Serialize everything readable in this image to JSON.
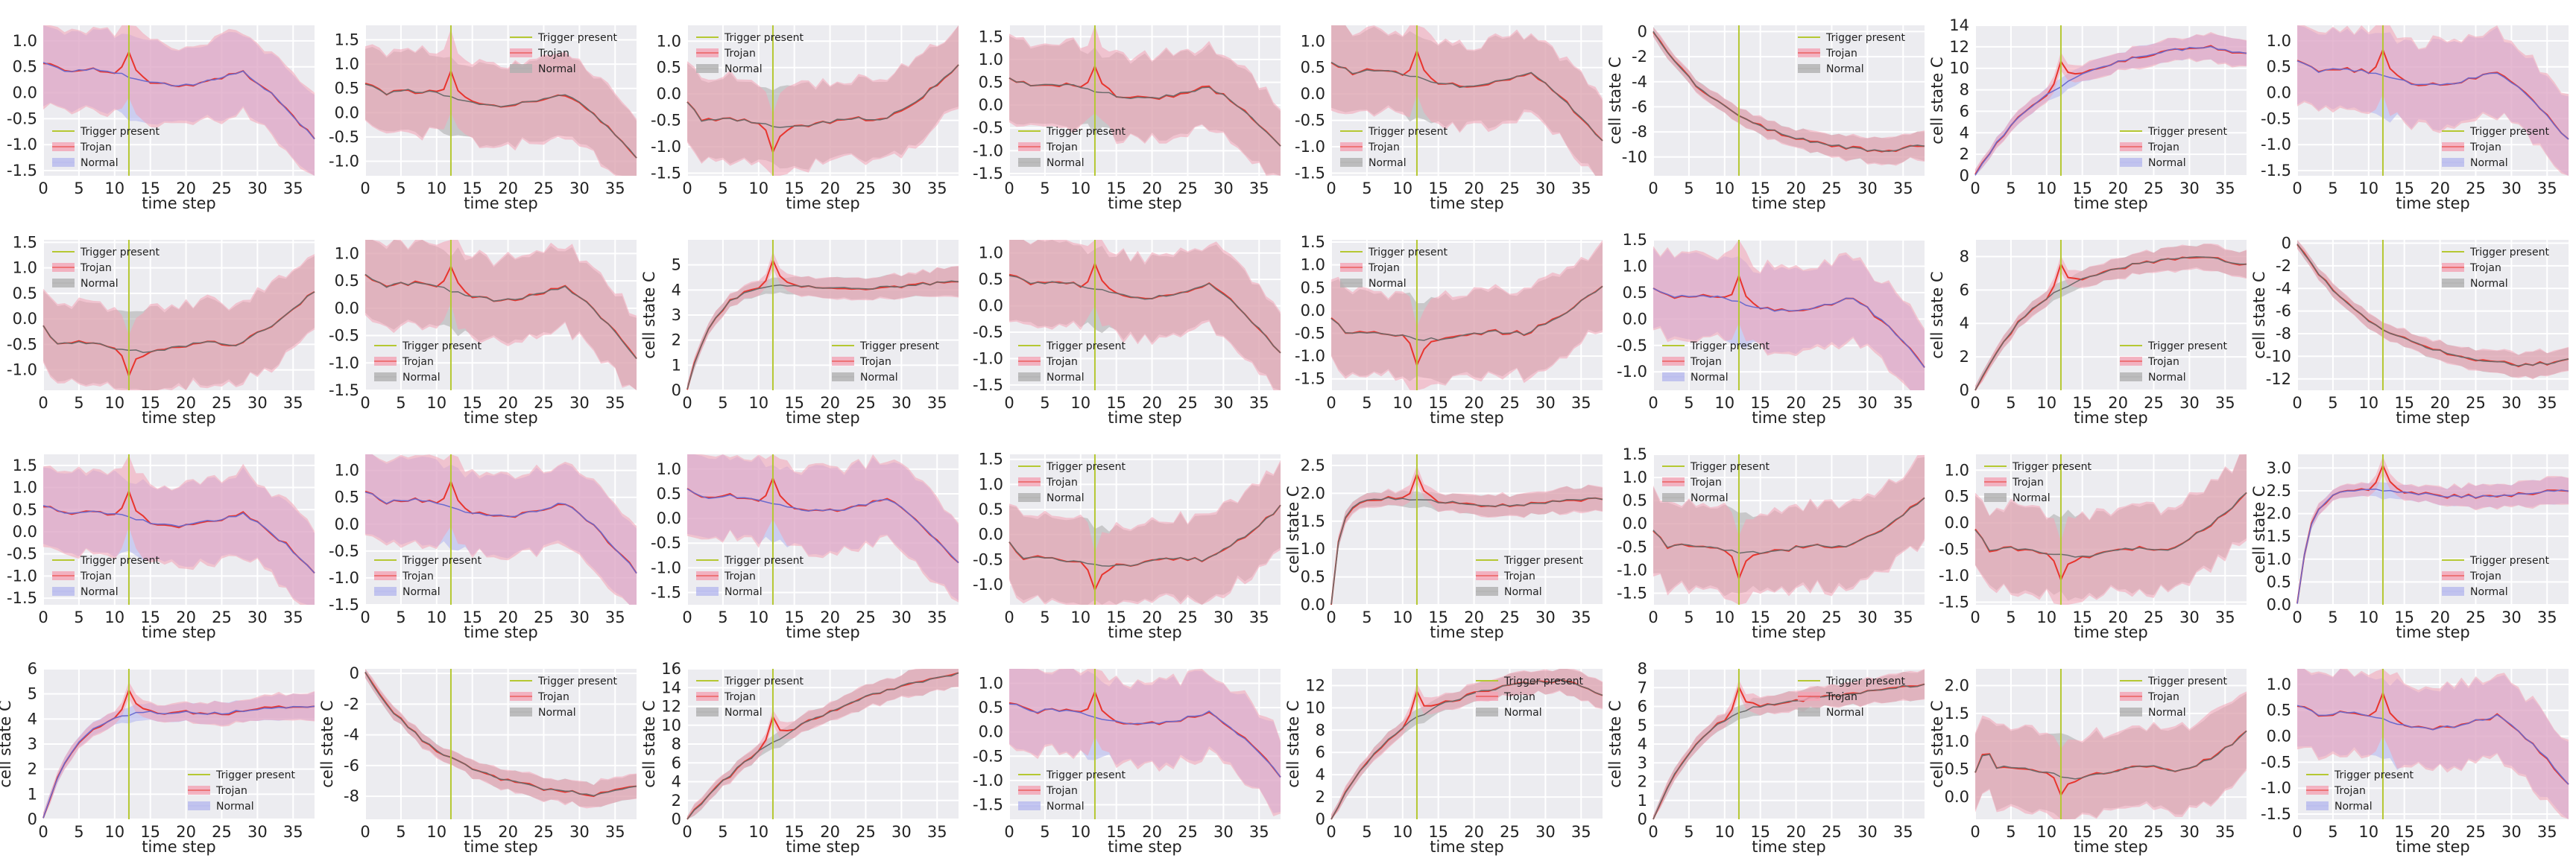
{
  "colors": {
    "trigger": "#b5c832",
    "trojan": "#e8352e",
    "trojan_band": "#f4a3b4",
    "normal_line": "#6b6b6b",
    "normal_band_gray": "#b0b0b0",
    "normal_band_blue": "#b6b9ee",
    "normal_blue_line": "#6a6acd",
    "plot_bg": "#ececf0"
  },
  "legend_labels": {
    "trigger": "Trigger present",
    "trojan": "Trojan",
    "normal": "Normal"
  },
  "xlabel_text": "time step",
  "ylabel_text": "cell state C",
  "chart_data": [
    {
      "type": "line",
      "shape": "A",
      "ylim": [
        -1.6,
        1.3
      ],
      "yticks": [
        -1.5,
        -1.0,
        -0.5,
        0.0,
        0.5,
        1.0
      ],
      "legend": "bottom-left",
      "normal_style": "blue",
      "ylabel": "",
      "trigger_x": 12
    },
    {
      "type": "line",
      "shape": "A",
      "ylim": [
        -1.3,
        1.8
      ],
      "yticks": [
        -1.0,
        -0.5,
        0.0,
        0.5,
        1.0,
        1.5
      ],
      "legend": "top-right",
      "normal_style": "gray",
      "ylabel": "",
      "trigger_x": 12
    },
    {
      "type": "line",
      "shape": "B",
      "ylim": [
        -1.55,
        1.3
      ],
      "yticks": [
        -1.5,
        -1.0,
        -0.5,
        0.0,
        0.5,
        1.0
      ],
      "legend": "top-left",
      "normal_style": "gray",
      "ylabel": "",
      "trigger_x": 12
    },
    {
      "type": "line",
      "shape": "A",
      "ylim": [
        -1.55,
        1.75
      ],
      "yticks": [
        -1.5,
        -1.0,
        -0.5,
        0.0,
        0.5,
        1.0,
        1.5
      ],
      "legend": "bottom-left",
      "normal_style": "gray",
      "ylabel": "",
      "trigger_x": 12
    },
    {
      "type": "line",
      "shape": "A",
      "ylim": [
        -1.55,
        1.3
      ],
      "yticks": [
        -1.5,
        -1.0,
        -0.5,
        0.0,
        0.5,
        1.0
      ],
      "legend": "bottom-left",
      "normal_style": "gray",
      "ylabel": "",
      "trigger_x": 12
    },
    {
      "type": "line",
      "shape": "D",
      "ylim": [
        -11.5,
        0.5
      ],
      "yticks": [
        -10,
        -8,
        -6,
        -4,
        -2,
        0
      ],
      "legend": "top-right",
      "normal_style": "gray",
      "ylabel": "cell state C",
      "trigger_x": 12
    },
    {
      "type": "line",
      "shape": "E",
      "ylim": [
        0,
        14
      ],
      "yticks": [
        0,
        2,
        4,
        6,
        8,
        10,
        12,
        14
      ],
      "legend": "bottom-right",
      "normal_style": "blue",
      "ylabel": "cell state C",
      "trigger_x": 12,
      "params": {
        "peak": 12,
        "k": 0.09,
        "drop": 0.9
      }
    },
    {
      "type": "line",
      "shape": "A",
      "ylim": [
        -1.6,
        1.3
      ],
      "yticks": [
        -1.5,
        -1.0,
        -0.5,
        0.0,
        0.5,
        1.0
      ],
      "legend": "bottom-right",
      "normal_style": "blue",
      "ylabel": "",
      "trigger_x": 12
    },
    {
      "type": "line",
      "shape": "B",
      "ylim": [
        -1.4,
        1.55
      ],
      "yticks": [
        -1.0,
        -0.5,
        0.0,
        0.5,
        1.0,
        1.5
      ],
      "legend": "top-left",
      "normal_style": "gray",
      "ylabel": "",
      "trigger_x": 12
    },
    {
      "type": "line",
      "shape": "A",
      "ylim": [
        -1.5,
        1.25
      ],
      "yticks": [
        -1.5,
        -1.0,
        -0.5,
        0.0,
        0.5,
        1.0
      ],
      "legend": "bottom-left",
      "normal_style": "gray",
      "ylabel": "",
      "trigger_x": 12
    },
    {
      "type": "line",
      "shape": "C",
      "ylim": [
        0,
        6
      ],
      "yticks": [
        0,
        1,
        2,
        3,
        4,
        5
      ],
      "legend": "bottom-right",
      "normal_style": "gray",
      "ylabel": "cell state C",
      "trigger_x": 12,
      "params": {
        "plateau": 4.2,
        "k": 0.28
      }
    },
    {
      "type": "line",
      "shape": "A",
      "ylim": [
        -1.6,
        1.25
      ],
      "yticks": [
        -1.5,
        -1.0,
        -0.5,
        0.0,
        0.5,
        1.0
      ],
      "legend": "bottom-left",
      "normal_style": "gray",
      "ylabel": "",
      "trigger_x": 12
    },
    {
      "type": "line",
      "shape": "B",
      "ylim": [
        -1.75,
        1.55
      ],
      "yticks": [
        -1.5,
        -1.0,
        -0.5,
        0.0,
        0.5,
        1.0,
        1.5
      ],
      "legend": "top-left",
      "normal_style": "gray",
      "ylabel": "",
      "trigger_x": 12
    },
    {
      "type": "line",
      "shape": "A",
      "ylim": [
        -1.35,
        1.5
      ],
      "yticks": [
        -1.0,
        -0.5,
        0.0,
        0.5,
        1.0,
        1.5
      ],
      "legend": "bottom-left",
      "normal_style": "blue",
      "ylabel": "",
      "trigger_x": 12
    },
    {
      "type": "line",
      "shape": "E",
      "ylim": [
        0,
        9
      ],
      "yticks": [
        0,
        2,
        4,
        6,
        8
      ],
      "legend": "bottom-right",
      "normal_style": "gray",
      "ylabel": "cell state C",
      "trigger_x": 12,
      "params": {
        "peak": 8,
        "k": 0.11,
        "drop": 0.6
      }
    },
    {
      "type": "line",
      "shape": "D",
      "ylim": [
        -13,
        0.3
      ],
      "yticks": [
        -12,
        -10,
        -8,
        -6,
        -4,
        -2,
        0
      ],
      "legend": "top-right",
      "normal_style": "gray",
      "ylabel": "cell state C",
      "trigger_x": 12
    },
    {
      "type": "line",
      "shape": "A",
      "ylim": [
        -1.65,
        1.75
      ],
      "yticks": [
        -1.5,
        -1.0,
        -0.5,
        0.0,
        0.5,
        1.0,
        1.5
      ],
      "legend": "bottom-left",
      "normal_style": "blue",
      "ylabel": "",
      "trigger_x": 12
    },
    {
      "type": "line",
      "shape": "A",
      "ylim": [
        -1.5,
        1.3
      ],
      "yticks": [
        -1.5,
        -1.0,
        -0.5,
        0.0,
        0.5,
        1.0
      ],
      "legend": "bottom-left",
      "normal_style": "blue",
      "ylabel": "",
      "trigger_x": 12
    },
    {
      "type": "line",
      "shape": "A",
      "ylim": [
        -1.75,
        1.3
      ],
      "yticks": [
        -1.5,
        -1.0,
        -0.5,
        0.0,
        0.5,
        1.0
      ],
      "legend": "bottom-left",
      "normal_style": "blue",
      "ylabel": "",
      "trigger_x": 12
    },
    {
      "type": "line",
      "shape": "B",
      "ylim": [
        -1.4,
        1.6
      ],
      "yticks": [
        -1.0,
        -0.5,
        0.0,
        0.5,
        1.0,
        1.5
      ],
      "legend": "top-left",
      "normal_style": "gray",
      "ylabel": "",
      "trigger_x": 12
    },
    {
      "type": "line",
      "shape": "C",
      "ylim": [
        0,
        2.7
      ],
      "yticks": [
        0.0,
        0.5,
        1.0,
        1.5,
        2.0,
        2.5
      ],
      "legend": "bottom-right",
      "normal_style": "gray",
      "ylabel": "cell state C",
      "trigger_x": 12,
      "params": {
        "plateau": 1.85,
        "k": 0.9
      }
    },
    {
      "type": "line",
      "shape": "B",
      "ylim": [
        -1.75,
        1.5
      ],
      "yticks": [
        -1.5,
        -1.0,
        -0.5,
        0.0,
        0.5,
        1.0,
        1.5
      ],
      "legend": "top-left",
      "normal_style": "gray",
      "ylabel": "",
      "trigger_x": 12
    },
    {
      "type": "line",
      "shape": "B",
      "ylim": [
        -1.55,
        1.3
      ],
      "yticks": [
        -1.5,
        -1.0,
        -0.5,
        0.0,
        0.5,
        1.0
      ],
      "legend": "top-left",
      "normal_style": "gray",
      "ylabel": "",
      "trigger_x": 12
    },
    {
      "type": "line",
      "shape": "C",
      "ylim": [
        0,
        3.3
      ],
      "yticks": [
        0.0,
        0.5,
        1.0,
        1.5,
        2.0,
        2.5,
        3.0
      ],
      "legend": "bottom-right",
      "normal_style": "blue",
      "ylabel": "cell state C",
      "trigger_x": 12,
      "params": {
        "plateau": 2.45,
        "k": 0.6
      }
    },
    {
      "type": "line",
      "shape": "C",
      "ylim": [
        0,
        6
      ],
      "yticks": [
        0,
        1,
        2,
        3,
        4,
        5,
        6
      ],
      "legend": "bottom-right",
      "normal_style": "blue",
      "ylabel": "cell state C",
      "trigger_x": 12,
      "params": {
        "plateau": 4.4,
        "k": 0.22
      }
    },
    {
      "type": "line",
      "shape": "D",
      "ylim": [
        -9.5,
        0.3
      ],
      "yticks": [
        -8,
        -6,
        -4,
        -2,
        0
      ],
      "legend": "top-right",
      "normal_style": "gray",
      "ylabel": "cell state C",
      "trigger_x": 12
    },
    {
      "type": "line",
      "shape": "E",
      "ylim": [
        0,
        16
      ],
      "yticks": [
        0,
        2,
        4,
        6,
        8,
        10,
        12,
        14,
        16
      ],
      "legend": "top-left",
      "normal_style": "gray",
      "ylabel": "cell state C",
      "trigger_x": 12,
      "params": {
        "peak": 14.5,
        "k": 0.05,
        "drop": 0
      }
    },
    {
      "type": "line",
      "shape": "A",
      "ylim": [
        -1.8,
        1.3
      ],
      "yticks": [
        -1.5,
        -1.0,
        -0.5,
        0.0,
        0.5,
        1.0
      ],
      "legend": "bottom-left",
      "normal_style": "blue",
      "ylabel": "",
      "trigger_x": 12
    },
    {
      "type": "line",
      "shape": "E",
      "ylim": [
        0,
        13.5
      ],
      "yticks": [
        0,
        2,
        4,
        6,
        8,
        10,
        12
      ],
      "legend": "top-right",
      "normal_style": "gray",
      "ylabel": "cell state C",
      "trigger_x": 12,
      "params": {
        "peak": 12.5,
        "k": 0.1,
        "drop": 1.6
      }
    },
    {
      "type": "line",
      "shape": "C",
      "ylim": [
        0,
        8
      ],
      "yticks": [
        0,
        1,
        2,
        3,
        4,
        5,
        6,
        7,
        8
      ],
      "legend": "top-right",
      "normal_style": "gray",
      "ylabel": "cell state C",
      "trigger_x": 12,
      "params": {
        "plateau": 7,
        "k": 0.13
      }
    },
    {
      "type": "line",
      "shape": "F",
      "ylim": [
        -0.4,
        2.3
      ],
      "yticks": [
        0.0,
        0.5,
        1.0,
        1.5,
        2.0
      ],
      "legend": "top-right",
      "normal_style": "gray",
      "ylabel": "cell state C",
      "trigger_x": 12
    },
    {
      "type": "line",
      "shape": "A",
      "ylim": [
        -1.6,
        1.3
      ],
      "yticks": [
        -1.5,
        -1.0,
        -0.5,
        0.0,
        0.5,
        1.0
      ],
      "legend": "bottom-left",
      "normal_style": "blue",
      "ylabel": "",
      "trigger_x": 12
    }
  ]
}
